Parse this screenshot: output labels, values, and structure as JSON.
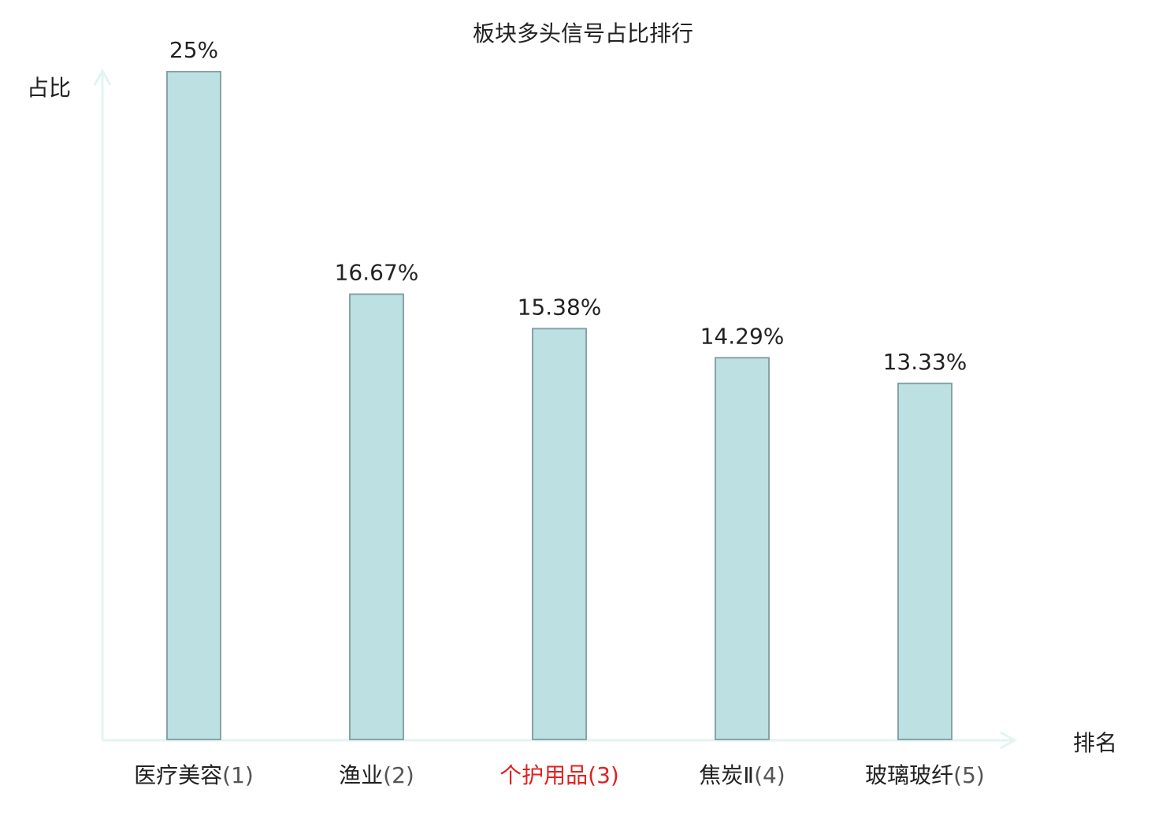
{
  "chart_data": {
    "type": "bar",
    "title": "板块多头信号占比排行",
    "ylabel": "占比",
    "xlabel": "排名",
    "ylim": [
      0,
      25
    ],
    "grid": false,
    "legend": "none",
    "categories": [
      {
        "name": "医疗美容",
        "rank": "(1)",
        "highlight": false
      },
      {
        "name": "渔业",
        "rank": "(2)",
        "highlight": false
      },
      {
        "name": "个护用品",
        "rank": "(3)",
        "highlight": true
      },
      {
        "name": "焦炭Ⅱ",
        "rank": "(4)",
        "highlight": false
      },
      {
        "name": "玻璃玻纤",
        "rank": "(5)",
        "highlight": false
      }
    ],
    "values": [
      25,
      16.67,
      15.38,
      14.29,
      13.33
    ],
    "value_labels": [
      "25%",
      "16.67%",
      "15.38%",
      "14.29%",
      "13.33%"
    ],
    "colors": {
      "bar_fill": "#bde0e2",
      "bar_stroke": "#86a3a7",
      "axis": "#e2f4f1",
      "text": "#222222",
      "rank_text": "#555555",
      "highlight": "#e02020"
    }
  }
}
